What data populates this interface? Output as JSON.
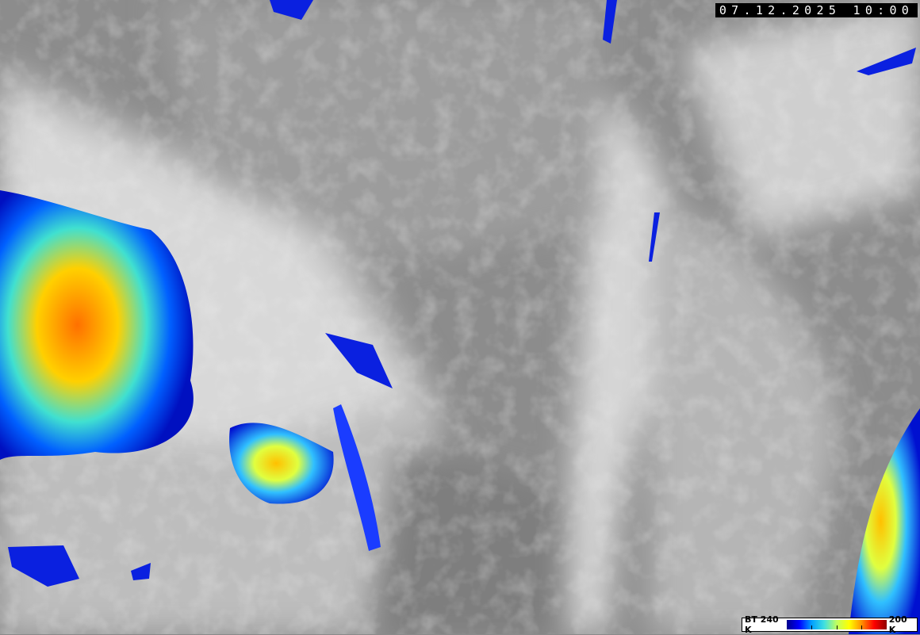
{
  "timestamp": "07.12.2025 10:00",
  "legend": {
    "min_label": "BT 240 K",
    "max_label": "200 K",
    "colors": [
      "#00008c",
      "#0000ff",
      "#00a0ff",
      "#40e0e0",
      "#c0ff60",
      "#ffff00",
      "#ff9000",
      "#ff0000",
      "#900000"
    ]
  }
}
